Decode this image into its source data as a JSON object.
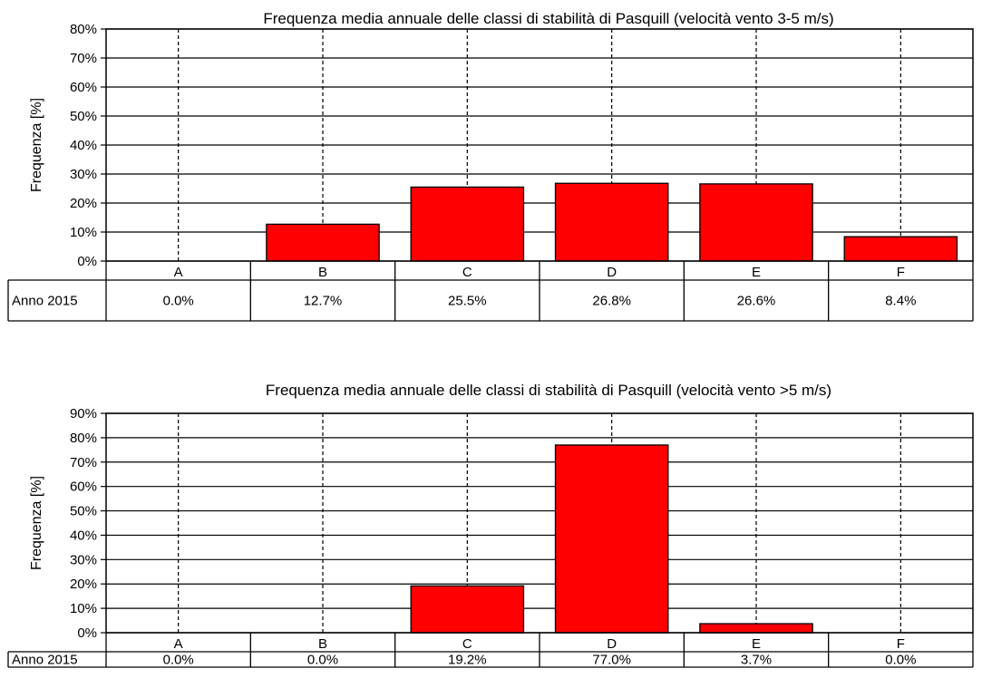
{
  "chart_data": [
    {
      "type": "bar",
      "title": "Frequenza media annuale delle classi di stabilità di Pasquill (velocità vento 3-5 m/s)",
      "ylabel": "Frequenza [%]",
      "categories": [
        "A",
        "B",
        "C",
        "D",
        "E",
        "F"
      ],
      "series": [
        {
          "name": "Anno 2015",
          "values": [
            0.0,
            12.7,
            25.5,
            26.8,
            26.6,
            8.4
          ],
          "labels": [
            "0.0%",
            "12.7%",
            "25.5%",
            "26.8%",
            "26.6%",
            "8.4%"
          ]
        }
      ],
      "ylim": [
        0,
        80
      ],
      "yticks": [
        "0%",
        "10%",
        "20%",
        "30%",
        "40%",
        "50%",
        "60%",
        "70%",
        "80%"
      ],
      "bar_color": "#ff0000",
      "grid": true,
      "data_table": true
    },
    {
      "type": "bar",
      "title": "Frequenza media annuale delle classi di stabilità di Pasquill (velocità vento >5 m/s)",
      "ylabel": "Frequenza [%]",
      "categories": [
        "A",
        "B",
        "C",
        "D",
        "E",
        "F"
      ],
      "series": [
        {
          "name": "Anno 2015",
          "values": [
            0.0,
            0.0,
            19.2,
            77.0,
            3.7,
            0.0
          ],
          "labels": [
            "0.0%",
            "0.0%",
            "19.2%",
            "77.0%",
            "3.7%",
            "0.0%"
          ]
        }
      ],
      "ylim": [
        0,
        90
      ],
      "yticks": [
        "0%",
        "10%",
        "20%",
        "30%",
        "40%",
        "50%",
        "60%",
        "70%",
        "80%",
        "90%"
      ],
      "bar_color": "#ff0000",
      "grid": true,
      "data_table": true
    }
  ]
}
